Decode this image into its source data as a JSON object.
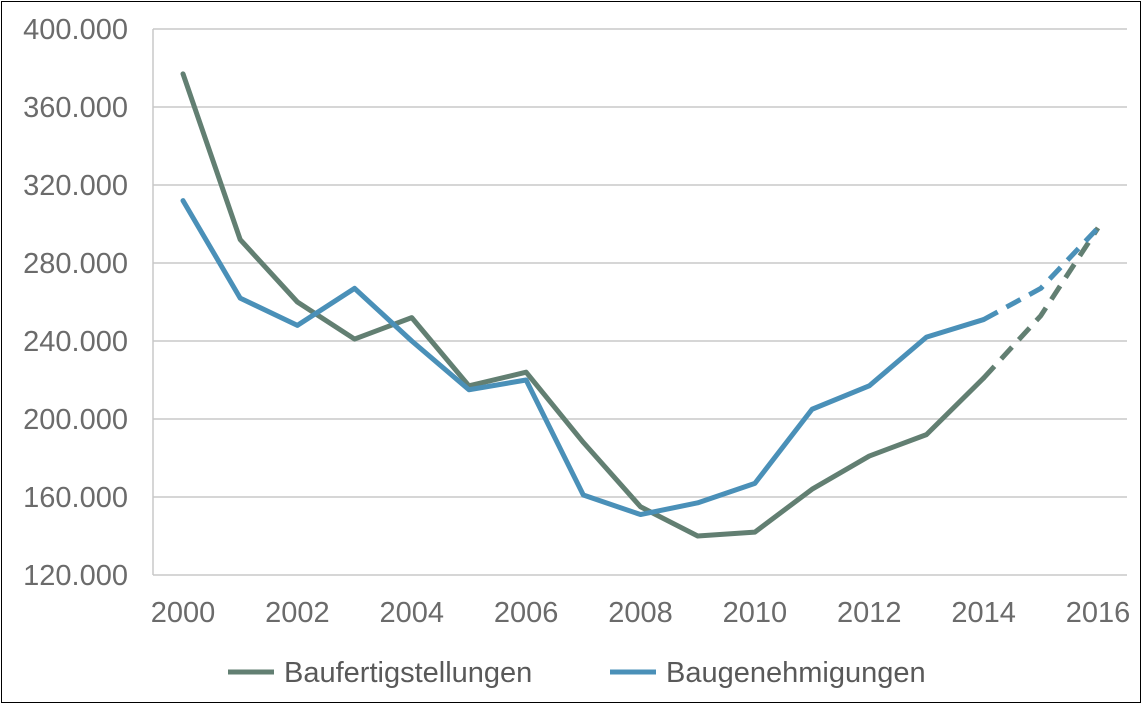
{
  "chart_data": {
    "type": "line",
    "title": "",
    "xlabel": "",
    "ylabel": "",
    "x": [
      2000,
      2001,
      2002,
      2003,
      2004,
      2005,
      2006,
      2007,
      2008,
      2009,
      2010,
      2011,
      2012,
      2013,
      2014,
      2015,
      2016
    ],
    "xlim": [
      2000,
      2016
    ],
    "ylim": [
      120000,
      400000
    ],
    "x_ticks": [
      2000,
      2002,
      2004,
      2006,
      2008,
      2010,
      2012,
      2014,
      2016
    ],
    "x_tick_labels": [
      "2000",
      "2002",
      "2004",
      "2006",
      "2008",
      "2010",
      "2012",
      "2014",
      "2016"
    ],
    "y_ticks": [
      120000,
      160000,
      200000,
      240000,
      280000,
      320000,
      360000,
      400000
    ],
    "y_tick_labels": [
      "120.000",
      "160.000",
      "200.000",
      "240.000",
      "280.000",
      "320.000",
      "360.000",
      "400.000"
    ],
    "grid": "horizontal",
    "legend_position": "bottom",
    "dashed_from_index": 14,
    "series": [
      {
        "name": "Baufertigstellungen",
        "color": "#627f72",
        "values": [
          377000,
          292000,
          260000,
          241000,
          252000,
          217000,
          224000,
          188000,
          155000,
          140000,
          142000,
          164000,
          181000,
          192000,
          221000,
          253000,
          298000
        ]
      },
      {
        "name": "Baugenehmigungen",
        "color": "#4a90b8",
        "values": [
          312000,
          262000,
          248000,
          267000,
          240000,
          215000,
          220000,
          161000,
          151000,
          157000,
          167000,
          205000,
          217000,
          242000,
          251000,
          267000,
          298000
        ]
      }
    ]
  }
}
